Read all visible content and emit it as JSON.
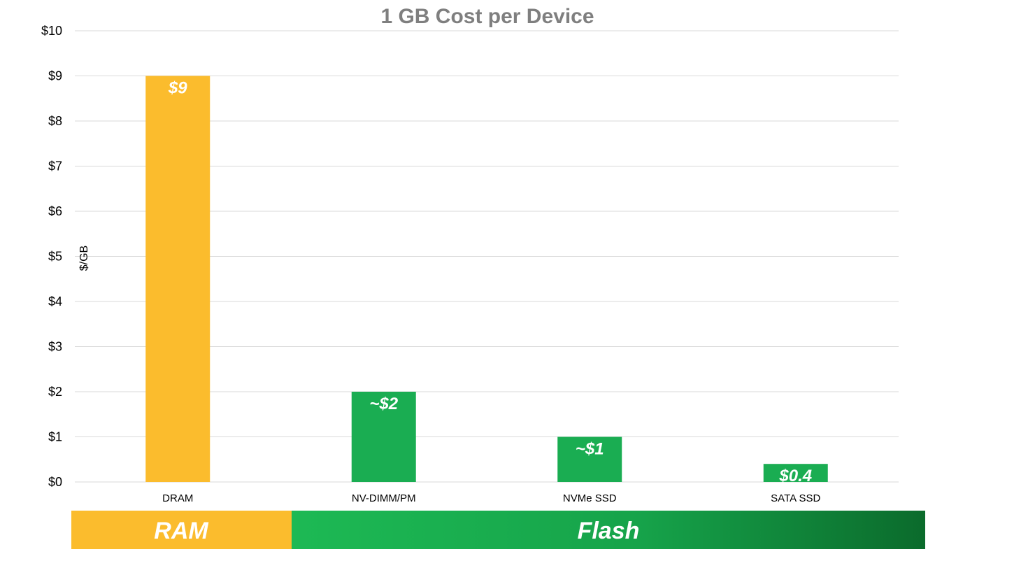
{
  "chart_data": {
    "type": "bar",
    "title": "1 GB Cost per Device",
    "ylabel": "$/GB",
    "xlabel": "",
    "ylim": [
      0,
      10
    ],
    "yticks": [
      "$0",
      "$1",
      "$2",
      "$3",
      "$4",
      "$5",
      "$6",
      "$7",
      "$8",
      "$9",
      "$10"
    ],
    "grid": true,
    "categories": [
      "DRAM",
      "NV-DIMM/PM",
      "NVMe SSD",
      "SATA SSD"
    ],
    "values": [
      9,
      2,
      1,
      0.4
    ],
    "data_labels": [
      "$9",
      "~$2",
      "~$1",
      "$0.4"
    ],
    "bar_colors": [
      "#fbbc2d",
      "#1aad52",
      "#1aad52",
      "#1aad52"
    ]
  },
  "bands": [
    {
      "label": "RAM",
      "color": "#fbbc2d"
    },
    {
      "label": "Flash",
      "color_start": "#1db954",
      "color_end": "#0b6b2c"
    }
  ]
}
